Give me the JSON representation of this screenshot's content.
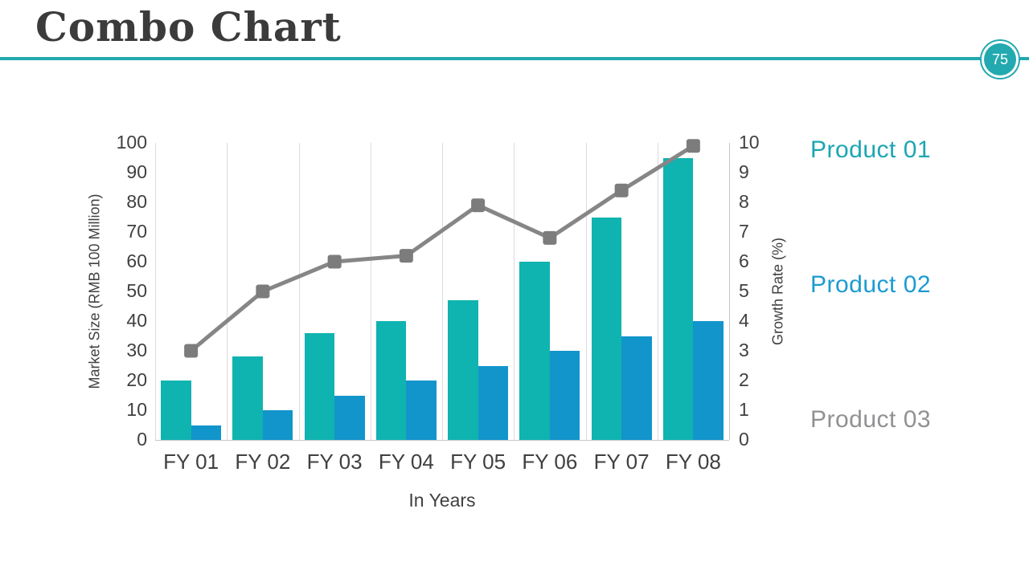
{
  "slide": {
    "title": "Combo Chart",
    "page_number": "75"
  },
  "colors": {
    "accent_teal": "#23a9b0",
    "title_text": "#3b3b3b",
    "axis_text": "#404040",
    "gridline": "#dcdce0",
    "axis_line": "#c6c6c6",
    "bar_product01": "#0fb3b0",
    "bar_product02": "#1295cb",
    "line_product03": "#868686",
    "marker_product03": "#7c7c7c",
    "legend_product01": "#1aa6b2",
    "legend_product02": "#1b9bd1",
    "legend_product03": "#909193"
  },
  "chart_data": {
    "type": "combo",
    "categories": [
      "FY 01",
      "FY 02",
      "FY 03",
      "FY 04",
      "FY 05",
      "FY 06",
      "FY 07",
      "FY 08"
    ],
    "series": [
      {
        "name": "Product 01",
        "type": "bar",
        "axis": "left",
        "values": [
          20,
          28,
          36,
          40,
          47,
          60,
          75,
          95
        ]
      },
      {
        "name": "Product 02",
        "type": "bar",
        "axis": "left",
        "values": [
          5,
          10,
          15,
          20,
          25,
          30,
          35,
          40
        ]
      },
      {
        "name": "Product 03",
        "type": "line",
        "axis": "right",
        "values": [
          3,
          5,
          6,
          6.2,
          7.9,
          6.8,
          8.4,
          9.9
        ]
      }
    ],
    "left_axis": {
      "label": "Market Size (RMB 100 Million)",
      "min": 0,
      "max": 100,
      "step": 10
    },
    "right_axis": {
      "label": "Growth Rate (%)",
      "min": 0,
      "max": 10,
      "step": 1
    },
    "x_axis_label": "In Years",
    "legend_position": "right",
    "grid": "vertical-only"
  }
}
